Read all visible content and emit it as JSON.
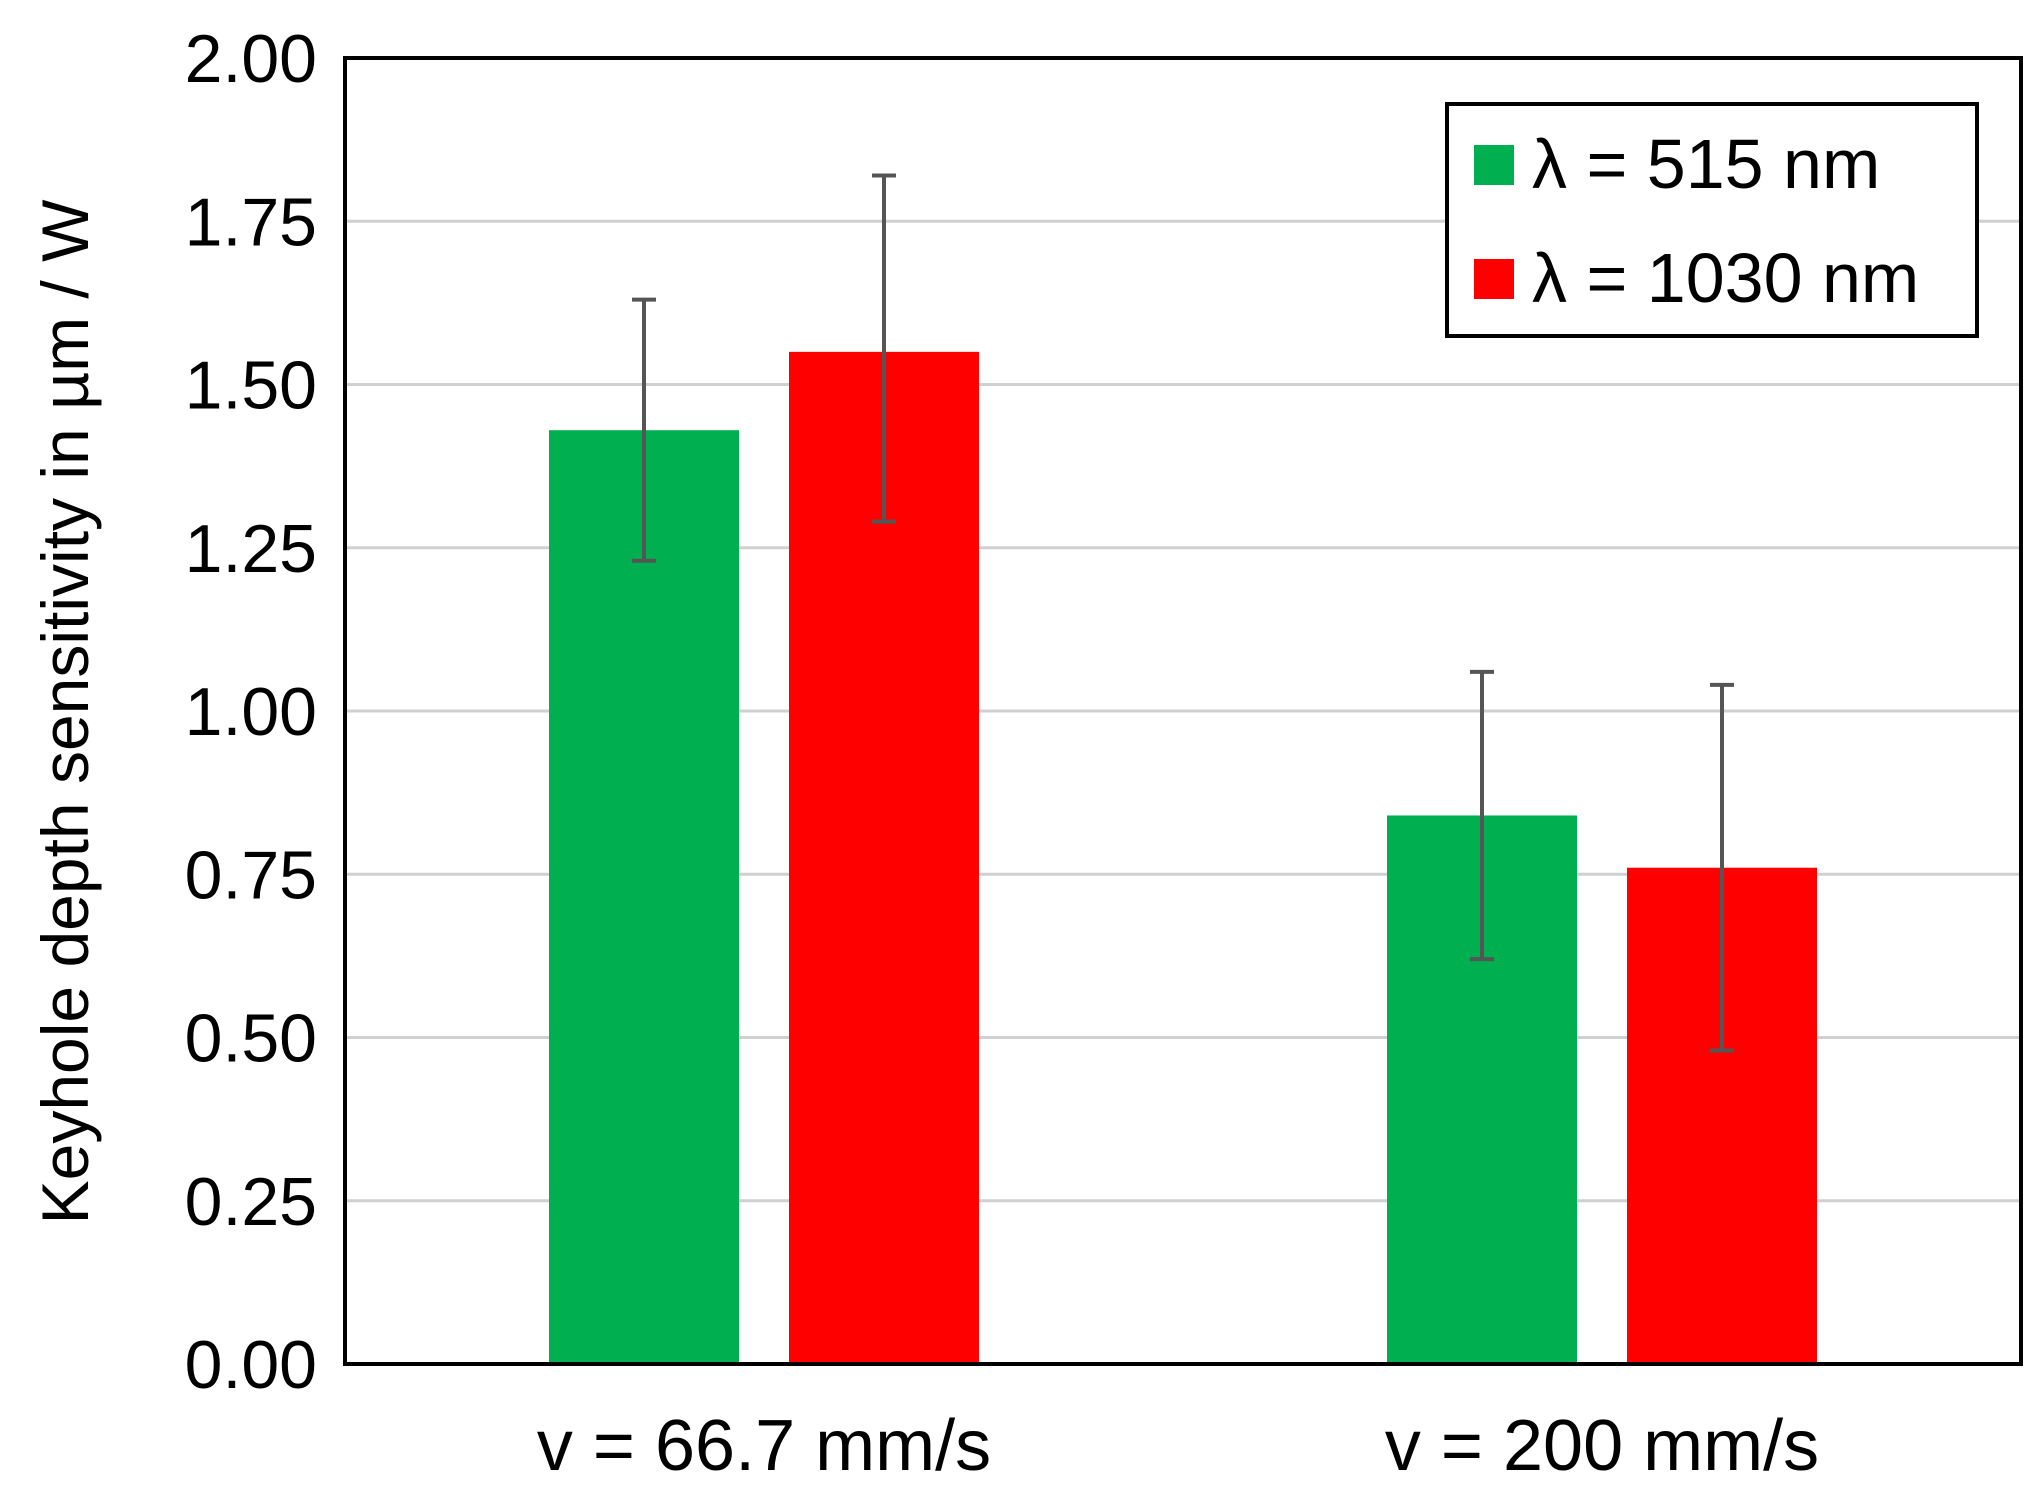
{
  "chart_data": {
    "type": "bar",
    "title": "",
    "xlabel": "",
    "ylabel": "Keyhole depth sensitivity in µm / W",
    "ylim": [
      0,
      2
    ],
    "yticks": [
      "0.00",
      "0.25",
      "0.50",
      "0.75",
      "1.00",
      "1.25",
      "1.50",
      "1.75",
      "2.00"
    ],
    "grid": true,
    "legend_position": "top-right",
    "categories": [
      "v = 66.7 mm/s",
      "v = 200 mm/s"
    ],
    "series": [
      {
        "name": "λ = 515 nm",
        "color": "#00b050",
        "values": [
          1.43,
          0.84
        ],
        "error_low": [
          1.23,
          0.62
        ],
        "error_high": [
          1.63,
          1.06
        ]
      },
      {
        "name": "λ = 1030 nm",
        "color": "#ff0000",
        "values": [
          1.55,
          0.76
        ],
        "error_low": [
          1.29,
          0.48
        ],
        "error_high": [
          1.82,
          1.04
        ]
      }
    ]
  }
}
